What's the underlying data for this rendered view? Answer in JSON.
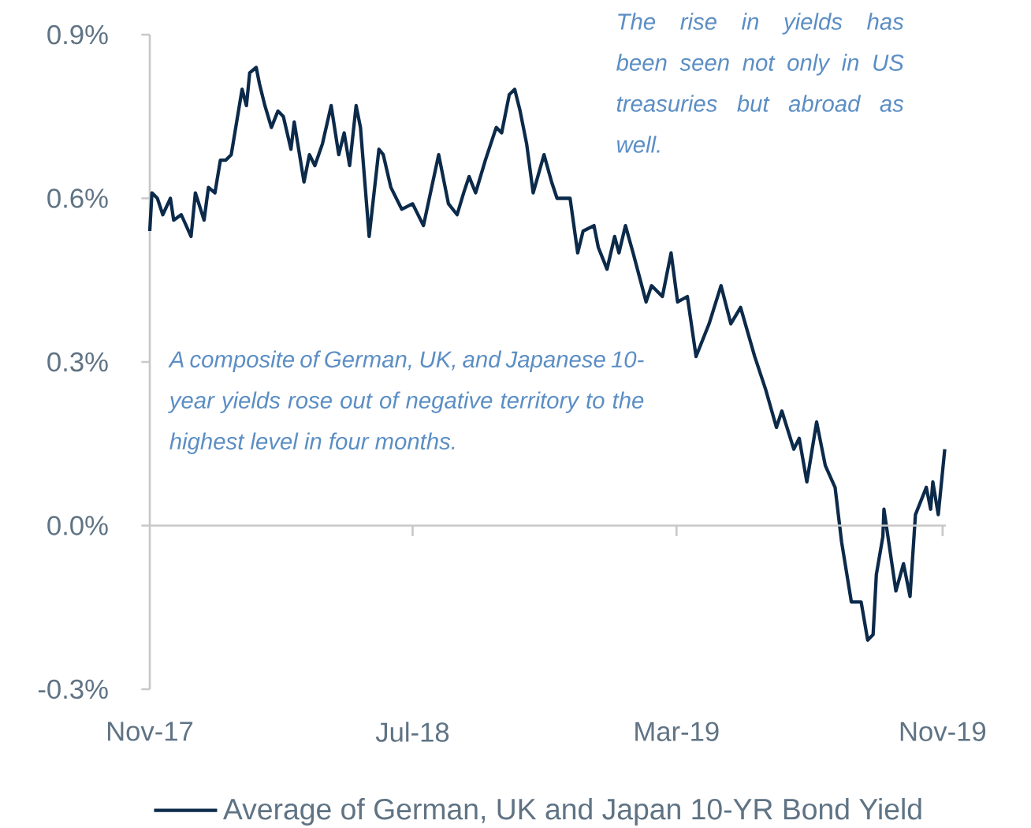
{
  "chart_data": {
    "type": "line",
    "annotations": [
      "The rise in yields has been seen not only in US treasuries but abroad as well.",
      "A composite of German, UK, and Japanese 10-year yields rose out of negative territory to the highest level in four months."
    ],
    "x": [
      "2017-11-01",
      "2017-11-03",
      "2017-11-08",
      "2017-11-13",
      "2017-11-20",
      "2017-11-23",
      "2017-11-30",
      "2017-12-09",
      "2017-12-13",
      "2017-12-21",
      "2017-12-25",
      "2017-12-31",
      "2018-01-05",
      "2018-01-10",
      "2018-01-15",
      "2018-01-25",
      "2018-01-29",
      "2018-02-01",
      "2018-02-07",
      "2018-02-10",
      "2018-02-15",
      "2018-02-21",
      "2018-02-27",
      "2018-03-04",
      "2018-03-11",
      "2018-03-14",
      "2018-03-23",
      "2018-03-28",
      "2018-04-02",
      "2018-04-09",
      "2018-04-17",
      "2018-04-24",
      "2018-04-29",
      "2018-05-04",
      "2018-05-10",
      "2018-05-14",
      "2018-05-22",
      "2018-05-31",
      "2018-06-04",
      "2018-06-11",
      "2018-06-21",
      "2018-07-01",
      "2018-07-11",
      "2018-07-25",
      "2018-08-03",
      "2018-08-11",
      "2018-08-17",
      "2018-08-22",
      "2018-08-28",
      "2018-09-06",
      "2018-09-16",
      "2018-09-21",
      "2018-09-28",
      "2018-10-03",
      "2018-10-08",
      "2018-10-14",
      "2018-10-20",
      "2018-10-30",
      "2018-11-06",
      "2018-11-11",
      "2018-11-23",
      "2018-11-30",
      "2018-12-05",
      "2018-12-15",
      "2018-12-19",
      "2018-12-27",
      "2019-01-03",
      "2019-01-07",
      "2019-01-13",
      "2019-01-20",
      "2019-02-01",
      "2019-02-06",
      "2019-02-16",
      "2019-02-24",
      "2019-03-02",
      "2019-03-11",
      "2019-03-19",
      "2019-03-31",
      "2019-04-11",
      "2019-04-20",
      "2019-04-29",
      "2019-05-12",
      "2019-05-22",
      "2019-06-01",
      "2019-06-06",
      "2019-06-17",
      "2019-06-22",
      "2019-06-29",
      "2019-07-08",
      "2019-07-16",
      "2019-07-25",
      "2019-07-31",
      "2019-08-09",
      "2019-08-18",
      "2019-08-24",
      "2019-08-29",
      "2019-09-01",
      "2019-09-07",
      "2019-09-08",
      "2019-09-19",
      "2019-09-26",
      "2019-10-02",
      "2019-10-07",
      "2019-10-17",
      "2019-10-21",
      "2019-10-23",
      "2019-10-28",
      "2019-11-03"
    ],
    "series": [
      {
        "name": "Average of German, UK and Japan 10-YR Bond Yield",
        "color": "#0c2a4a",
        "values": [
          0.54,
          0.61,
          0.6,
          0.57,
          0.6,
          0.56,
          0.57,
          0.53,
          0.61,
          0.56,
          0.62,
          0.61,
          0.67,
          0.67,
          0.68,
          0.8,
          0.77,
          0.83,
          0.84,
          0.81,
          0.77,
          0.73,
          0.76,
          0.75,
          0.69,
          0.74,
          0.63,
          0.68,
          0.66,
          0.7,
          0.77,
          0.68,
          0.72,
          0.66,
          0.77,
          0.73,
          0.53,
          0.69,
          0.68,
          0.62,
          0.58,
          0.59,
          0.55,
          0.68,
          0.59,
          0.57,
          0.61,
          0.64,
          0.61,
          0.67,
          0.73,
          0.72,
          0.79,
          0.8,
          0.76,
          0.7,
          0.61,
          0.68,
          0.63,
          0.6,
          0.6,
          0.5,
          0.54,
          0.55,
          0.51,
          0.47,
          0.53,
          0.5,
          0.55,
          0.5,
          0.41,
          0.44,
          0.42,
          0.5,
          0.41,
          0.42,
          0.31,
          0.37,
          0.44,
          0.37,
          0.4,
          0.31,
          0.25,
          0.18,
          0.21,
          0.14,
          0.16,
          0.08,
          0.19,
          0.11,
          0.07,
          -0.03,
          -0.14,
          -0.14,
          -0.21,
          -0.2,
          -0.09,
          -0.02,
          0.03,
          -0.12,
          -0.07,
          -0.13,
          0.02,
          0.07,
          0.03,
          0.08,
          0.02,
          0.14
        ]
      }
    ],
    "xlim": [
      "2017-11-01",
      "2019-11-04"
    ],
    "xticks": [
      {
        "value": "2017-11-01",
        "label": "Nov-17"
      },
      {
        "value": "2018-07-01",
        "label": "Jul-18"
      },
      {
        "value": "2019-03-01",
        "label": "Mar-19"
      },
      {
        "value": "2019-11-01",
        "label": "Nov-19"
      }
    ],
    "ylim": [
      -0.3,
      0.9
    ],
    "yticks": [
      {
        "value": -0.3,
        "label": "-0.3%"
      },
      {
        "value": 0.0,
        "label": "0.0%"
      },
      {
        "value": 0.3,
        "label": "0.3%"
      },
      {
        "value": 0.6,
        "label": "0.6%"
      },
      {
        "value": 0.9,
        "label": "0.9%"
      }
    ],
    "legend": "bottom"
  }
}
